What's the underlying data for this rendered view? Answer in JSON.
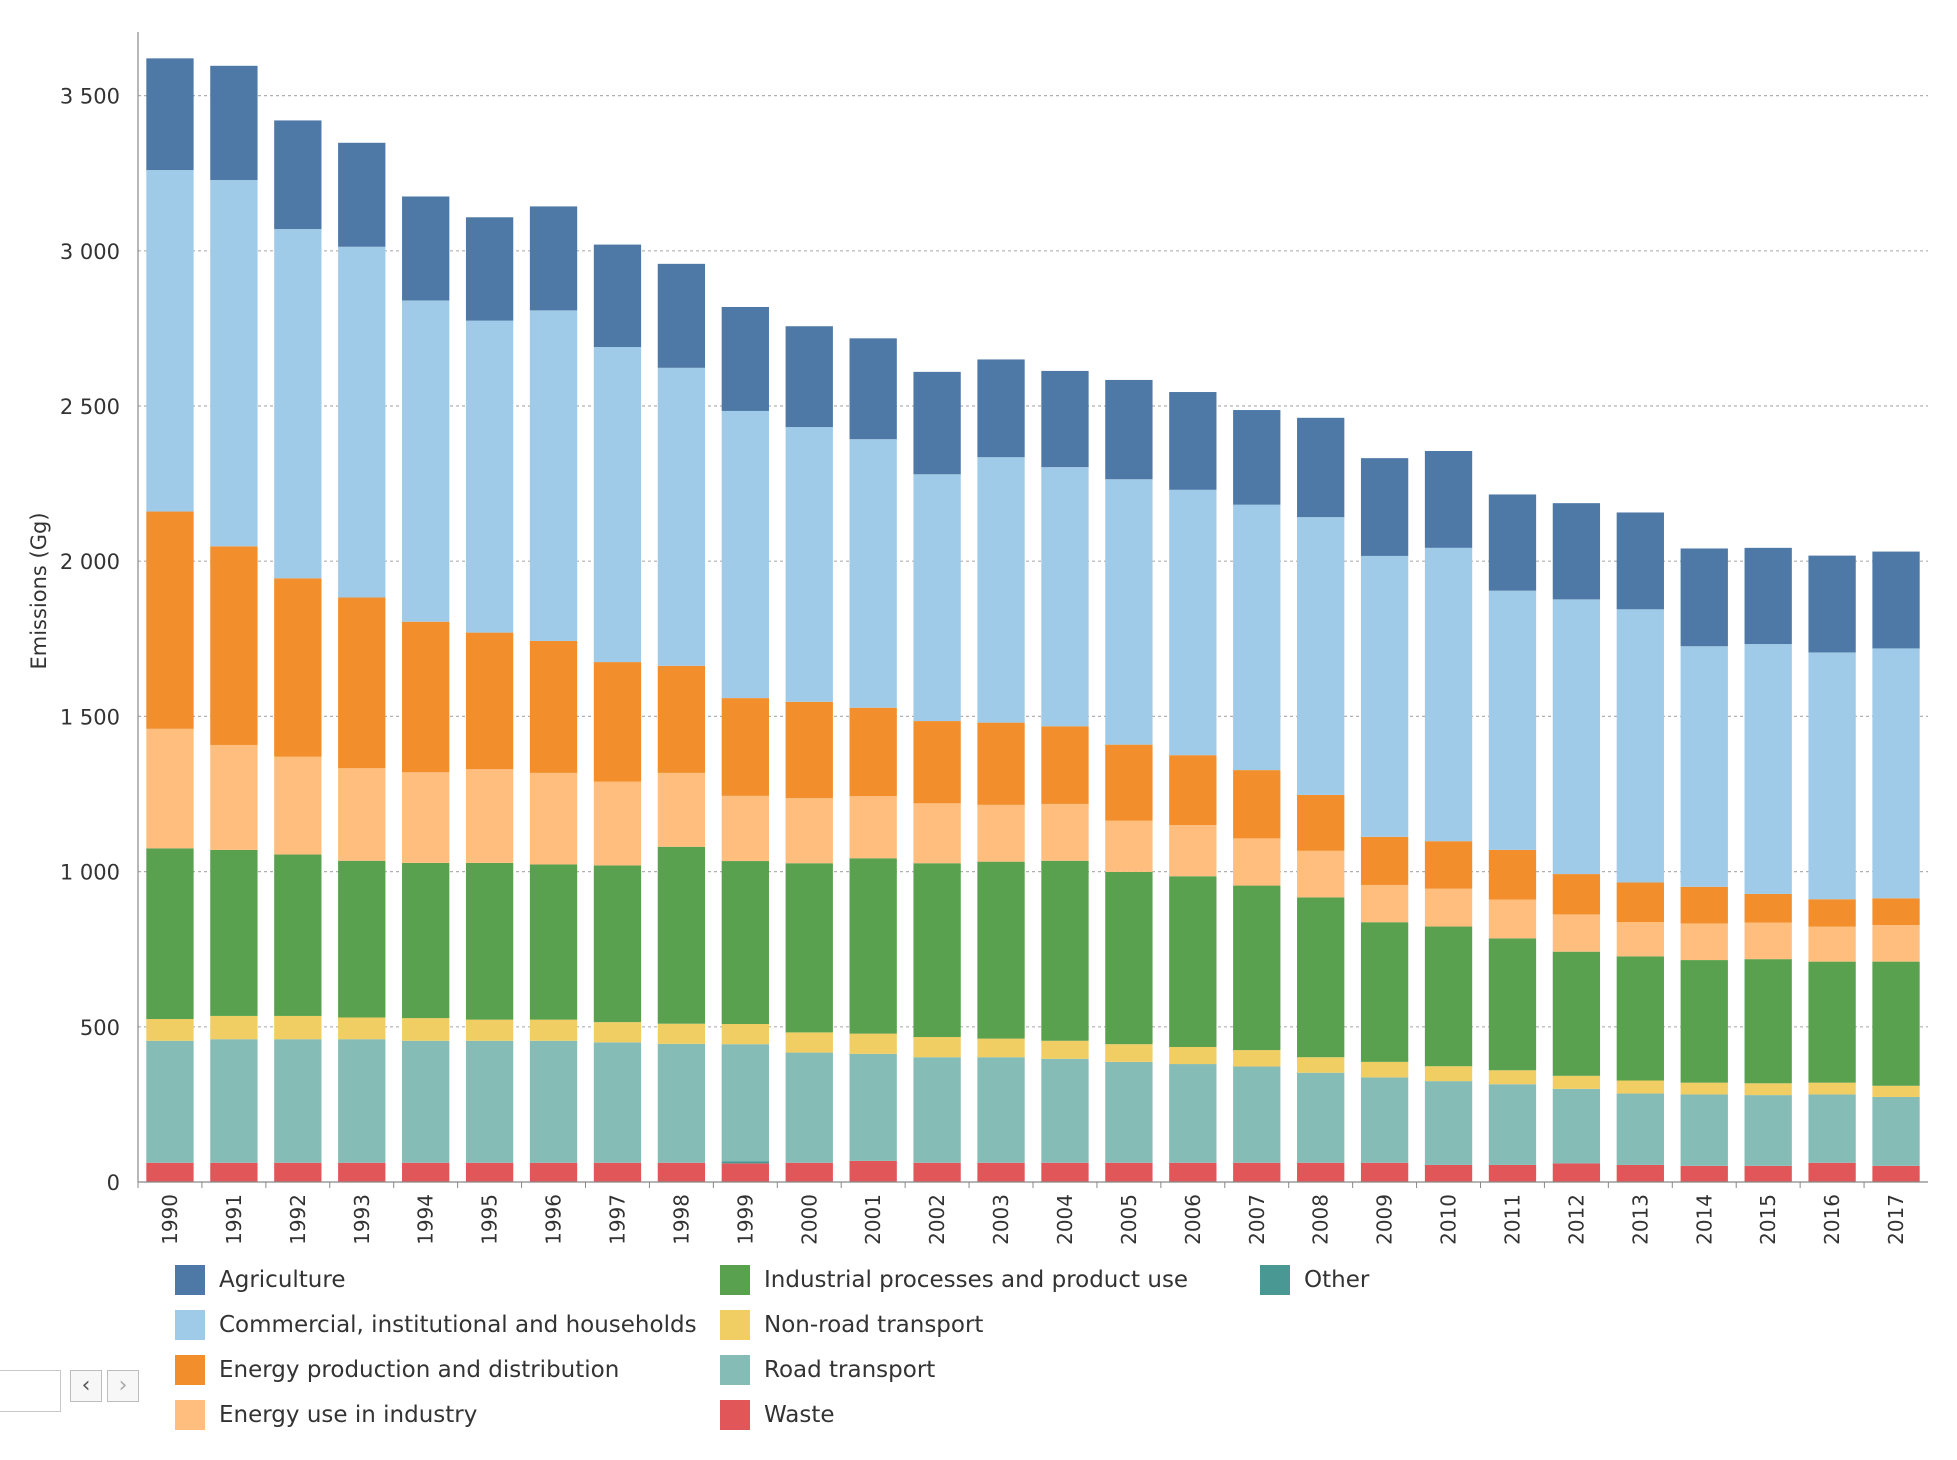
{
  "chart_data": {
    "type": "bar",
    "stacked": true,
    "title": "",
    "xlabel": "",
    "ylabel": "Emissions (Gg)",
    "ylim": [
      0,
      3650
    ],
    "y_ticks": [
      0,
      500,
      1000,
      1500,
      2000,
      2500,
      3000,
      3500
    ],
    "y_tick_labels": [
      "0",
      "500",
      "1 000",
      "1 500",
      "2 000",
      "2 500",
      "3 000",
      "3 500"
    ],
    "grid": true,
    "legend_position": "bottom",
    "categories": [
      "1990",
      "1991",
      "1992",
      "1993",
      "1994",
      "1995",
      "1996",
      "1997",
      "1998",
      "1999",
      "2000",
      "2001",
      "2002",
      "2003",
      "2004",
      "2005",
      "2006",
      "2007",
      "2008",
      "2009",
      "2010",
      "2011",
      "2012",
      "2013",
      "2014",
      "2015",
      "2016",
      "2017"
    ],
    "series": [
      {
        "name": "Waste",
        "color": "#e15759",
        "values": [
          62,
          62,
          62,
          62,
          62,
          62,
          62,
          62,
          62,
          60,
          62,
          68,
          62,
          62,
          62,
          62,
          62,
          62,
          62,
          62,
          55,
          55,
          60,
          55,
          52,
          52,
          62,
          52
        ]
      },
      {
        "name": "Other",
        "color": "#499894",
        "values": [
          0,
          0,
          0,
          0,
          0,
          0,
          0,
          0,
          0,
          6,
          0,
          0,
          0,
          0,
          0,
          0,
          0,
          0,
          0,
          0,
          0,
          0,
          0,
          0,
          0,
          0,
          0,
          0
        ]
      },
      {
        "name": "Road transport",
        "color": "#86bcb6",
        "values": [
          393,
          398,
          398,
          398,
          393,
          393,
          393,
          388,
          383,
          378,
          355,
          345,
          340,
          340,
          335,
          325,
          318,
          310,
          290,
          275,
          270,
          260,
          240,
          230,
          230,
          228,
          220,
          222
        ]
      },
      {
        "name": "Non-road transport",
        "color": "#f1ce63",
        "values": [
          70,
          75,
          75,
          70,
          73,
          68,
          68,
          65,
          65,
          65,
          65,
          65,
          65,
          60,
          58,
          57,
          55,
          53,
          50,
          50,
          48,
          45,
          42,
          42,
          38,
          38,
          38,
          36
        ]
      },
      {
        "name": "Industrial processes and product use",
        "color": "#59a14f",
        "values": [
          550,
          535,
          520,
          505,
          500,
          505,
          500,
          505,
          570,
          525,
          545,
          565,
          560,
          570,
          580,
          555,
          550,
          530,
          515,
          450,
          450,
          425,
          400,
          400,
          395,
          400,
          390,
          400
        ]
      },
      {
        "name": "Energy use in industry",
        "color": "#ffbe7d",
        "values": [
          385,
          338,
          315,
          298,
          292,
          302,
          295,
          270,
          238,
          210,
          210,
          200,
          193,
          183,
          183,
          165,
          165,
          152,
          150,
          120,
          122,
          125,
          120,
          110,
          118,
          118,
          113,
          118
        ]
      },
      {
        "name": "Energy production and distribution",
        "color": "#f28e2b",
        "values": [
          700,
          640,
          575,
          550,
          485,
          440,
          425,
          385,
          345,
          315,
          310,
          285,
          265,
          265,
          250,
          245,
          225,
          220,
          180,
          155,
          153,
          160,
          130,
          128,
          118,
          92,
          88,
          86
        ]
      },
      {
        "name": "Commercial, institutional and households",
        "color": "#a0cbe8",
        "values": [
          1100,
          1180,
          1125,
          1130,
          1035,
          1005,
          1065,
          1015,
          960,
          925,
          885,
          865,
          795,
          855,
          835,
          855,
          855,
          855,
          895,
          905,
          945,
          835,
          885,
          880,
          775,
          805,
          795,
          805
        ]
      },
      {
        "name": "Agriculture",
        "color": "#4e79a7",
        "values": [
          360,
          368,
          350,
          335,
          335,
          333,
          335,
          330,
          335,
          335,
          325,
          325,
          330,
          315,
          310,
          320,
          315,
          305,
          320,
          315,
          312,
          310,
          310,
          312,
          315,
          310,
          312,
          312
        ]
      }
    ]
  },
  "legend": {
    "items": [
      {
        "label": "Agriculture",
        "color": "#4e79a7"
      },
      {
        "label": "Commercial, institutional and households",
        "color": "#a0cbe8"
      },
      {
        "label": "Energy production and distribution",
        "color": "#f28e2b"
      },
      {
        "label": "Energy use in industry",
        "color": "#ffbe7d"
      },
      {
        "label": "Industrial processes and product use",
        "color": "#59a14f"
      },
      {
        "label": "Non-road transport",
        "color": "#f1ce63"
      },
      {
        "label": "Road transport",
        "color": "#86bcb6"
      },
      {
        "label": "Waste",
        "color": "#e15759"
      },
      {
        "label": "Other",
        "color": "#499894"
      }
    ]
  },
  "pager": {
    "prev_icon": "‹",
    "next_icon": "›"
  }
}
